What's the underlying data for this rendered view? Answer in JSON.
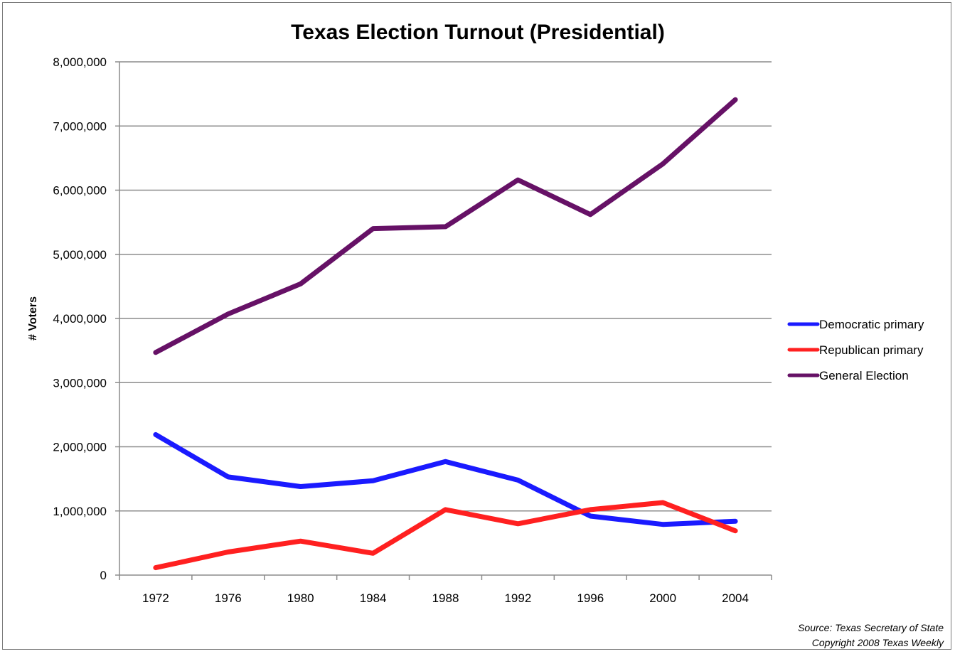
{
  "chart_data": {
    "type": "line",
    "title": "Texas Election Turnout (Presidential)",
    "xlabel": "",
    "ylabel": "# Voters",
    "ylim": [
      0,
      8000000
    ],
    "yticks": [
      "0",
      "1,000,000",
      "2,000,000",
      "3,000,000",
      "4,000,000",
      "5,000,000",
      "6,000,000",
      "7,000,000",
      "8,000,000"
    ],
    "grid": true,
    "legend_position": "right",
    "categories": [
      "1972",
      "1976",
      "1980",
      "1984",
      "1988",
      "1992",
      "1996",
      "2000",
      "2004"
    ],
    "series": [
      {
        "name": "Democratic primary",
        "color": "#1a1aff",
        "values": [
          2190000,
          1530000,
          1380000,
          1470000,
          1770000,
          1480000,
          920000,
          790000,
          840000
        ]
      },
      {
        "name": "Republican primary",
        "color": "#ff2020",
        "values": [
          115000,
          360000,
          530000,
          340000,
          1020000,
          800000,
          1020000,
          1130000,
          690000
        ]
      },
      {
        "name": "General Election",
        "color": "#661166",
        "values": [
          3470000,
          4070000,
          4540000,
          5400000,
          5430000,
          6160000,
          5620000,
          6410000,
          7410000
        ]
      }
    ]
  },
  "source_line1": "Source: Texas Secretary of State",
  "source_line2": "Copyright 2008 Texas Weekly"
}
